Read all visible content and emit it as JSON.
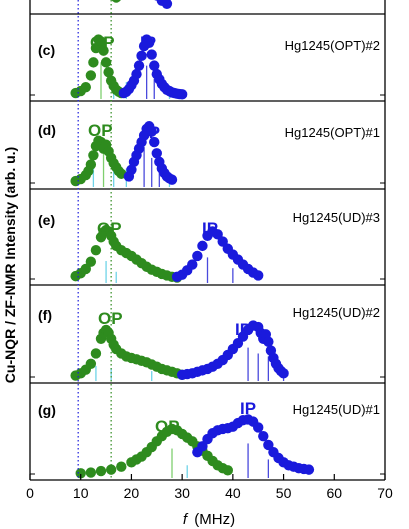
{
  "chart_data": {
    "type": "scatter",
    "xlabel_italic": "f",
    "xlabel_unit": "(MHz)",
    "ylabel": "Cu-NQR / ZF-NMR Intensity (arb. u.)",
    "xlim": [
      0,
      70
    ],
    "x_ticks": [
      0,
      10,
      20,
      30,
      40,
      50,
      60,
      70
    ],
    "reference_lines": [
      9.5,
      16.0
    ],
    "colors": {
      "op": "#2e8b1e",
      "ip": "#1a1adc",
      "axes": "#000000",
      "stick_cyan": "#6fd3e8",
      "stick_blue": "#4a4adc",
      "stick_green": "#7fcf6f"
    },
    "panels": [
      {
        "tag": "",
        "sample": "",
        "label_op": "",
        "label_ip": "",
        "op": [
          [
            13,
            1.5
          ],
          [
            14,
            1.8
          ],
          [
            15,
            1.6
          ],
          [
            16,
            1.3
          ],
          [
            17,
            1.0
          ]
        ],
        "ip": [
          [
            21,
            1.6
          ],
          [
            22,
            1.9
          ],
          [
            23,
            2.0
          ],
          [
            24,
            1.8
          ],
          [
            25,
            1.2
          ],
          [
            26,
            0.7
          ],
          [
            27,
            0.4
          ]
        ]
      },
      {
        "tag": "(c)",
        "sample": "Hg1245(OPT)#2",
        "label_op": "OP",
        "label_ip": "IP",
        "op": [
          [
            9,
            0.03
          ],
          [
            10,
            0.06
          ],
          [
            11,
            0.12
          ],
          [
            12,
            0.3
          ],
          [
            12.5,
            0.5
          ],
          [
            13,
            0.72
          ],
          [
            13.5,
            0.85
          ],
          [
            14,
            0.82
          ],
          [
            14.5,
            0.68
          ],
          [
            15,
            0.5
          ],
          [
            15.5,
            0.35
          ],
          [
            16,
            0.22
          ],
          [
            16.5,
            0.14
          ],
          [
            17,
            0.08
          ],
          [
            17.5,
            0.05
          ],
          [
            18,
            0.03
          ]
        ],
        "ip": [
          [
            18.5,
            0.03
          ],
          [
            19,
            0.05
          ],
          [
            19.5,
            0.09
          ],
          [
            20,
            0.15
          ],
          [
            20.5,
            0.22
          ],
          [
            21,
            0.32
          ],
          [
            21.5,
            0.45
          ],
          [
            22,
            0.6
          ],
          [
            22.5,
            0.75
          ],
          [
            23,
            0.85
          ],
          [
            23.5,
            0.8
          ],
          [
            24,
            0.62
          ],
          [
            24.5,
            0.45
          ],
          [
            25,
            0.32
          ],
          [
            25.5,
            0.24
          ],
          [
            26,
            0.17
          ],
          [
            26.5,
            0.12
          ],
          [
            27,
            0.08
          ],
          [
            27.5,
            0.06
          ],
          [
            28,
            0.04
          ],
          [
            28.5,
            0.03
          ],
          [
            29,
            0.02
          ],
          [
            29.5,
            0.015
          ],
          [
            30,
            0.01
          ]
        ],
        "sticks": [
          [
            14,
            0.5,
            "green"
          ],
          [
            16.5,
            0.15,
            "cyan"
          ],
          [
            19,
            0.2,
            "cyan"
          ],
          [
            23,
            0.45,
            "blue"
          ],
          [
            24.5,
            0.25,
            "blue"
          ],
          [
            27.5,
            0.12,
            "cyan"
          ]
        ]
      },
      {
        "tag": "(d)",
        "sample": "Hg1245(OPT)#1",
        "label_op": "OP",
        "label_ip": "IP",
        "op": [
          [
            9,
            0.03
          ],
          [
            10,
            0.06
          ],
          [
            11,
            0.12
          ],
          [
            11.5,
            0.18
          ],
          [
            12,
            0.28
          ],
          [
            12.5,
            0.42
          ],
          [
            13,
            0.56
          ],
          [
            13.5,
            0.64
          ],
          [
            14,
            0.62
          ],
          [
            14.5,
            0.52
          ],
          [
            15,
            0.58
          ],
          [
            15.5,
            0.48
          ],
          [
            16,
            0.38
          ],
          [
            16.5,
            0.3
          ],
          [
            17,
            0.24
          ],
          [
            17.5,
            0.18
          ],
          [
            18,
            0.14
          ]
        ],
        "ip": [
          [
            19.5,
            0.1
          ],
          [
            20,
            0.2
          ],
          [
            20.5,
            0.32
          ],
          [
            21,
            0.42
          ],
          [
            21.5,
            0.52
          ],
          [
            22,
            0.62
          ],
          [
            22.5,
            0.72
          ],
          [
            23,
            0.82
          ],
          [
            23.5,
            0.86
          ],
          [
            24,
            0.78
          ],
          [
            24.5,
            0.62
          ],
          [
            25,
            0.45
          ],
          [
            25.5,
            0.32
          ],
          [
            26,
            0.22
          ],
          [
            26.5,
            0.15
          ],
          [
            27,
            0.1
          ],
          [
            27.5,
            0.07
          ],
          [
            28,
            0.05
          ]
        ],
        "sticks": [
          [
            12.5,
            0.35,
            "cyan"
          ],
          [
            14.5,
            0.45,
            "green"
          ],
          [
            16.5,
            0.2,
            "cyan"
          ],
          [
            19,
            0.22,
            "cyan"
          ],
          [
            22.5,
            0.55,
            "blue"
          ],
          [
            24,
            0.38,
            "blue"
          ],
          [
            25.5,
            0.22,
            "blue"
          ],
          [
            27.5,
            0.1,
            "cyan"
          ]
        ]
      },
      {
        "tag": "(e)",
        "sample": "Hg1245(UD)#3",
        "label_op": "OP",
        "label_ip": "IP",
        "op": [
          [
            9,
            0.04
          ],
          [
            10,
            0.08
          ],
          [
            11,
            0.14
          ],
          [
            12,
            0.24
          ],
          [
            13,
            0.4
          ],
          [
            14,
            0.58
          ],
          [
            14.5,
            0.65
          ],
          [
            15,
            0.68
          ],
          [
            15.5,
            0.66
          ],
          [
            16,
            0.6
          ],
          [
            16.5,
            0.52
          ],
          [
            17,
            0.46
          ],
          [
            18,
            0.4
          ],
          [
            19,
            0.36
          ],
          [
            20,
            0.32
          ],
          [
            21,
            0.27
          ],
          [
            22,
            0.22
          ],
          [
            23,
            0.17
          ],
          [
            24,
            0.13
          ],
          [
            25,
            0.1
          ],
          [
            26,
            0.07
          ],
          [
            27,
            0.05
          ],
          [
            28,
            0.03
          ],
          [
            29,
            0.02
          ]
        ],
        "ip": [
          [
            29,
            0.03
          ],
          [
            30,
            0.06
          ],
          [
            31,
            0.12
          ],
          [
            32,
            0.2
          ],
          [
            33,
            0.32
          ],
          [
            34,
            0.46
          ],
          [
            35,
            0.6
          ],
          [
            36,
            0.66
          ],
          [
            37,
            0.62
          ],
          [
            38,
            0.52
          ],
          [
            39,
            0.42
          ],
          [
            40,
            0.34
          ],
          [
            41,
            0.27
          ],
          [
            42,
            0.2
          ],
          [
            43,
            0.14
          ],
          [
            44,
            0.09
          ],
          [
            45,
            0.05
          ]
        ],
        "sticks": [
          [
            15,
            0.25,
            "cyan"
          ],
          [
            17,
            0.1,
            "cyan"
          ],
          [
            35,
            0.3,
            "blue"
          ],
          [
            40,
            0.15,
            "blue"
          ]
        ]
      },
      {
        "tag": "(f)",
        "sample": "Hg1245(UD)#2",
        "label_op": "OP",
        "label_ip": "IP",
        "op": [
          [
            9,
            0.02
          ],
          [
            10,
            0.05
          ],
          [
            11,
            0.1
          ],
          [
            12,
            0.18
          ],
          [
            13,
            0.32
          ],
          [
            14,
            0.52
          ],
          [
            14.5,
            0.6
          ],
          [
            15,
            0.64
          ],
          [
            15.5,
            0.6
          ],
          [
            16,
            0.52
          ],
          [
            16.5,
            0.44
          ],
          [
            17,
            0.38
          ],
          [
            18,
            0.32
          ],
          [
            19,
            0.28
          ],
          [
            20,
            0.26
          ],
          [
            21,
            0.24
          ],
          [
            22,
            0.22
          ],
          [
            23,
            0.2
          ],
          [
            24,
            0.17
          ],
          [
            25,
            0.14
          ],
          [
            26,
            0.11
          ],
          [
            27,
            0.09
          ],
          [
            28,
            0.07
          ],
          [
            29,
            0.05
          ],
          [
            30,
            0.03
          ]
        ],
        "ip": [
          [
            30,
            0.03
          ],
          [
            31,
            0.04
          ],
          [
            32,
            0.05
          ],
          [
            33,
            0.07
          ],
          [
            34,
            0.09
          ],
          [
            35,
            0.11
          ],
          [
            36,
            0.14
          ],
          [
            37,
            0.18
          ],
          [
            38,
            0.23
          ],
          [
            39,
            0.3
          ],
          [
            40,
            0.38
          ],
          [
            41,
            0.46
          ],
          [
            42,
            0.55
          ],
          [
            43,
            0.64
          ],
          [
            44,
            0.7
          ],
          [
            45,
            0.68
          ],
          [
            45.5,
            0.6
          ],
          [
            46,
            0.52
          ],
          [
            46.5,
            0.58
          ],
          [
            47,
            0.48
          ],
          [
            47.5,
            0.36
          ],
          [
            48,
            0.26
          ],
          [
            48.5,
            0.18
          ],
          [
            49,
            0.12
          ],
          [
            49.5,
            0.08
          ],
          [
            50,
            0.05
          ]
        ],
        "sticks": [
          [
            13,
            0.15,
            "cyan"
          ],
          [
            16,
            0.12,
            "cyan"
          ],
          [
            24,
            0.08,
            "cyan"
          ],
          [
            43,
            0.4,
            "blue"
          ],
          [
            45,
            0.32,
            "blue"
          ],
          [
            47,
            0.28,
            "blue"
          ],
          [
            50,
            0.12,
            "blue"
          ]
        ]
      },
      {
        "tag": "(g)",
        "sample": "Hg1245(UD)#1",
        "label_op": "OP",
        "label_ip": "IP",
        "op": [
          [
            10,
            0.01
          ],
          [
            12,
            0.02
          ],
          [
            14,
            0.04
          ],
          [
            16,
            0.06
          ],
          [
            18,
            0.1
          ],
          [
            20,
            0.16
          ],
          [
            21,
            0.2
          ],
          [
            22,
            0.24
          ],
          [
            23,
            0.3
          ],
          [
            24,
            0.37
          ],
          [
            25,
            0.45
          ],
          [
            26,
            0.52
          ],
          [
            27,
            0.58
          ],
          [
            28,
            0.62
          ],
          [
            29,
            0.6
          ],
          [
            30,
            0.55
          ],
          [
            31,
            0.5
          ],
          [
            32,
            0.45
          ],
          [
            33,
            0.38
          ],
          [
            34,
            0.32
          ],
          [
            35,
            0.25
          ],
          [
            36,
            0.18
          ],
          [
            37,
            0.12
          ],
          [
            38,
            0.08
          ],
          [
            39,
            0.05
          ]
        ],
        "ip": [
          [
            33,
            0.3
          ],
          [
            34,
            0.38
          ],
          [
            35,
            0.48
          ],
          [
            36,
            0.56
          ],
          [
            37,
            0.6
          ],
          [
            38,
            0.62
          ],
          [
            39,
            0.63
          ],
          [
            40,
            0.65
          ],
          [
            41,
            0.7
          ],
          [
            42,
            0.74
          ],
          [
            43,
            0.75
          ],
          [
            44,
            0.72
          ],
          [
            45,
            0.64
          ],
          [
            46,
            0.52
          ],
          [
            47,
            0.4
          ],
          [
            48,
            0.3
          ],
          [
            49,
            0.22
          ],
          [
            50,
            0.16
          ],
          [
            51,
            0.12
          ],
          [
            52,
            0.1
          ],
          [
            53,
            0.08
          ],
          [
            54,
            0.07
          ],
          [
            55,
            0.06
          ]
        ],
        "sticks": [
          [
            28,
            0.35,
            "green"
          ],
          [
            31,
            0.12,
            "cyan"
          ],
          [
            43,
            0.42,
            "blue"
          ],
          [
            47,
            0.2,
            "blue"
          ]
        ]
      }
    ]
  }
}
